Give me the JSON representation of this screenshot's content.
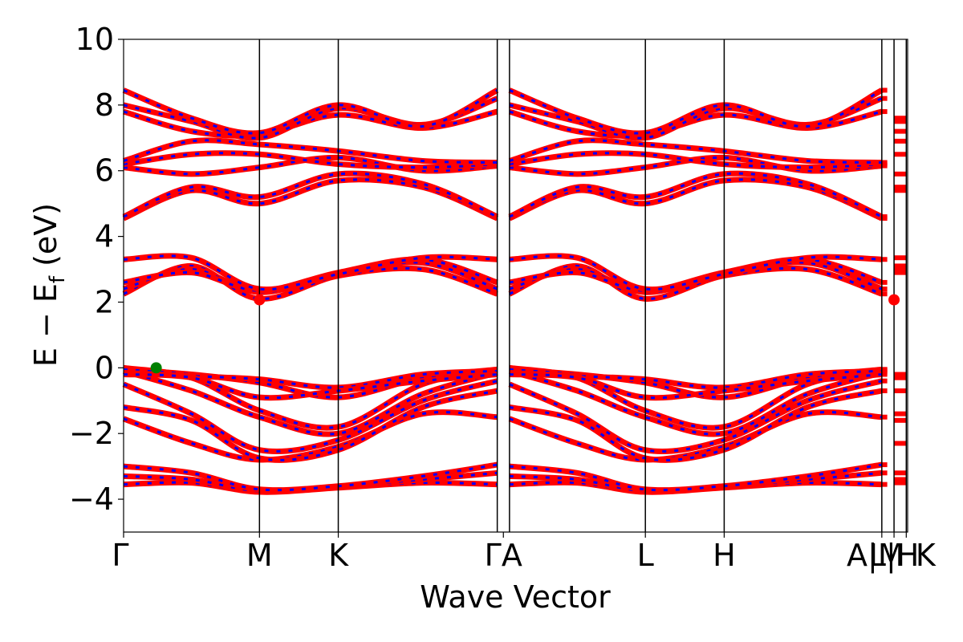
{
  "chart_data": {
    "type": "line",
    "title": "",
    "xlabel": "Wave Vector",
    "ylabel": "E − E",
    "ylabel_subscript": "f",
    "ylabel_unit": " (eV)",
    "ylim": [
      -5,
      10
    ],
    "yticks": [
      -4,
      -2,
      0,
      2,
      4,
      6,
      8,
      10
    ],
    "ytick_labels": [
      "−4",
      "−2",
      "0",
      "2",
      "4",
      "6",
      "8",
      "10"
    ],
    "xlim": [
      0,
      5.77
    ],
    "kpoints": [
      {
        "label": "Γ",
        "x": 0.0
      },
      {
        "label": "M",
        "x": 1.0
      },
      {
        "label": "K",
        "x": 1.58
      },
      {
        "label": "Γ",
        "x": 2.75
      },
      {
        "label": "A",
        "x": 2.84
      },
      {
        "label": "L",
        "x": 3.84
      },
      {
        "label": "H",
        "x": 4.42
      },
      {
        "label": "A",
        "x": 5.58
      },
      {
        "label": "M",
        "x": 5.58
      },
      {
        "label": "L",
        "x": 5.67
      },
      {
        "label": "H",
        "x": 5.67
      },
      {
        "label": "K",
        "x": 5.76
      }
    ],
    "kpoint_tick_labels": [
      "Γ",
      "M",
      "K",
      "ΓA",
      "L",
      "H",
      "A|M",
      "L|H",
      "K"
    ],
    "vlines": [
      1.0,
      1.58,
      2.75,
      2.84,
      3.84,
      4.42,
      5.58,
      5.67,
      5.76
    ],
    "band_colors": {
      "spin_up": "#ff0000",
      "spin_down": "#0000ff"
    },
    "vbm": {
      "x": 0.24,
      "y": 0.0,
      "color": "#008000"
    },
    "cbm": [
      {
        "x": 1.0,
        "y": 2.07,
        "color": "#ff0000"
      },
      {
        "x": 5.67,
        "y": 2.07,
        "color": "#ff0000"
      }
    ],
    "band_groups": [
      {
        "name": "",
        "x": [
          0,
          0.5,
          1.0,
          1.58,
          2.2,
          2.75
        ],
        "bands": [
          [
            -3.55,
            -3.5,
            -3.78,
            -3.65,
            -3.5,
            -3.55
          ],
          [
            -3.3,
            -3.4,
            -3.75,
            -3.62,
            -3.4,
            -3.2
          ],
          [
            -3.0,
            -3.2,
            -3.7,
            -3.6,
            -3.3,
            -2.95
          ]
        ]
      },
      {
        "name": "",
        "x": [
          0,
          0.5,
          1.0,
          1.58,
          2.2,
          2.75
        ],
        "bands": [
          [
            -1.55,
            -2.3,
            -2.8,
            -2.4,
            -1.4,
            -1.5
          ],
          [
            -1.2,
            -1.6,
            -2.75,
            -2.5,
            -1.2,
            -0.7
          ],
          [
            -0.5,
            -1.4,
            -2.5,
            -2.2,
            -1.0,
            -0.4
          ],
          [
            -0.1,
            -0.7,
            -1.5,
            -2.0,
            -0.8,
            -0.15
          ],
          [
            0.0,
            -0.3,
            -1.3,
            -1.8,
            -0.5,
            -0.05
          ],
          [
            -0.05,
            -0.2,
            -0.45,
            -0.9,
            -0.3,
            -0.05
          ],
          [
            -0.15,
            -0.25,
            -0.35,
            -0.6,
            -0.2,
            -0.1
          ],
          [
            -0.2,
            -0.3,
            -0.9,
            -0.7,
            -0.4,
            -0.2
          ]
        ]
      },
      {
        "name": "",
        "x": [
          0,
          0.5,
          1.0,
          1.58,
          2.2,
          2.75
        ],
        "bands": [
          [
            2.25,
            3.1,
            2.1,
            2.8,
            3.0,
            2.25
          ],
          [
            2.4,
            3.0,
            2.3,
            2.85,
            3.2,
            2.4
          ],
          [
            2.6,
            2.9,
            2.35,
            2.9,
            3.3,
            2.6
          ],
          [
            3.3,
            3.35,
            2.4,
            2.85,
            3.35,
            3.3
          ]
        ]
      },
      {
        "name": "",
        "x": [
          0,
          0.5,
          1.0,
          1.58,
          2.2,
          2.75
        ],
        "bands": [
          [
            4.55,
            5.4,
            5.0,
            5.7,
            5.5,
            4.55
          ],
          [
            4.6,
            5.5,
            5.2,
            5.9,
            5.6,
            4.6
          ],
          [
            6.1,
            5.9,
            6.1,
            6.4,
            6.0,
            6.15
          ],
          [
            6.2,
            6.5,
            6.5,
            6.2,
            6.1,
            6.2
          ],
          [
            6.3,
            6.9,
            6.8,
            6.6,
            6.3,
            6.25
          ],
          [
            7.8,
            7.2,
            7.1,
            7.7,
            7.3,
            7.8
          ],
          [
            8.0,
            7.5,
            7.0,
            7.9,
            7.4,
            8.2
          ],
          [
            8.45,
            7.6,
            7.15,
            8.0,
            7.35,
            8.45
          ]
        ]
      }
    ]
  }
}
